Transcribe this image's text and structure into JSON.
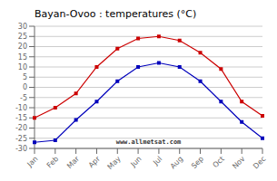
{
  "chart_data": {
    "type": "line",
    "title": "Bayan-Ovoo : temperatures (°C)",
    "categories": [
      "Jan",
      "Feb",
      "Mar",
      "Apr",
      "May",
      "Jun",
      "Jul",
      "Aug",
      "Sep",
      "Oct",
      "Nov",
      "Dec"
    ],
    "series": [
      {
        "color": "#cc0000",
        "marker": "square",
        "values": [
          -15,
          -10,
          -3,
          10,
          19,
          24,
          25,
          23,
          17,
          9,
          -7,
          -14
        ]
      },
      {
        "color": "#0000bb",
        "marker": "square",
        "values": [
          -27,
          -26,
          -16,
          -7,
          3,
          10,
          12,
          10,
          3,
          -7,
          -17,
          -25
        ]
      }
    ],
    "ylim": [
      -30,
      30
    ],
    "yticks": [
      -30,
      -25,
      -20,
      -15,
      -10,
      -5,
      0,
      5,
      10,
      15,
      20,
      25,
      30
    ],
    "grid": true,
    "annotations": [
      "www.allmetsat.com"
    ]
  }
}
